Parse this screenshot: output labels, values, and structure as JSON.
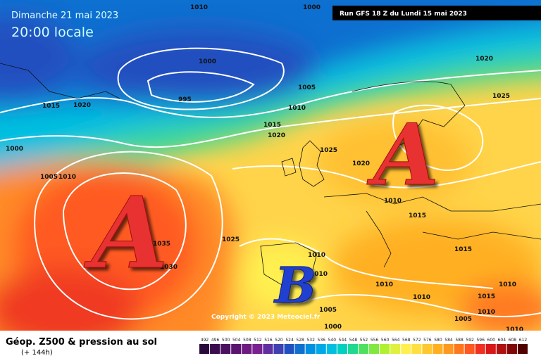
{
  "header": {
    "date": "Dimanche 21 mai 2023",
    "time": "20:00 locale",
    "run": "Run GFS 18 Z du Lundi 15 mai 2023"
  },
  "map": {
    "centers": [
      "A",
      "A",
      "B"
    ],
    "isobar_labels": [
      1010,
      1000,
      1000,
      995,
      1005,
      1015,
      1020,
      1010,
      1015,
      1020,
      1025,
      1000,
      1005,
      1010,
      1020,
      1020,
      1025,
      1010,
      1015,
      1025,
      1035,
      1030,
      1010,
      1010,
      1015,
      1010,
      1010,
      1010,
      1015,
      1010,
      1005,
      1005,
      1000,
      1010
    ],
    "copyright": "Copyright © 2023 Meteociel.fr"
  },
  "footer": {
    "title": "Géop. Z500 & pression au sol",
    "lead": "(+ 144h)"
  },
  "legend": {
    "labels": [
      492,
      496,
      500,
      504,
      508,
      512,
      516,
      520,
      524,
      528,
      532,
      536,
      540,
      544,
      548,
      552,
      556,
      560,
      564,
      568,
      572,
      576,
      580,
      584,
      588,
      592,
      596,
      600,
      604,
      608,
      612
    ],
    "colors": [
      "#2a0a3a",
      "#3a0d4f",
      "#4b1060",
      "#5b1370",
      "#6e1a80",
      "#7a2090",
      "#6030a0",
      "#4040b0",
      "#2050c0",
      "#1070d0",
      "#0090e0",
      "#00a8e8",
      "#00c0e0",
      "#00d0c0",
      "#20d890",
      "#50e060",
      "#80e840",
      "#b0f030",
      "#e0f040",
      "#fff050",
      "#ffe040",
      "#ffc830",
      "#ffb020",
      "#ff9820",
      "#ff7820",
      "#ff5820",
      "#f03020",
      "#d81818",
      "#b01010",
      "#800808",
      "#500000"
    ]
  }
}
